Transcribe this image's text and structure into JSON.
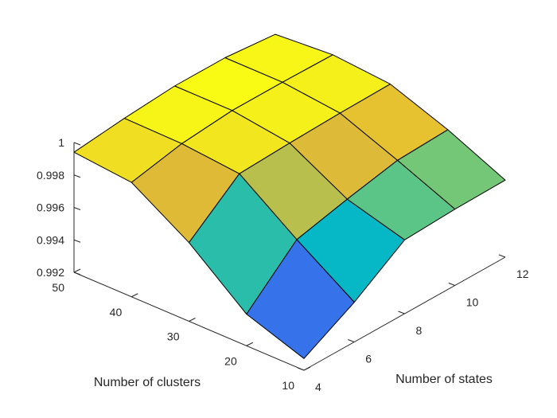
{
  "chart_data": {
    "type": "surface",
    "title": "",
    "xlabel": "Number of states",
    "ylabel": "Number of clusters",
    "zlabel": "",
    "x": [
      4,
      6,
      8,
      10,
      12
    ],
    "y": [
      10,
      20,
      30,
      40,
      50
    ],
    "z": [
      [
        0.99272,
        0.99445,
        0.99655,
        0.9967,
        0.99675
      ],
      [
        0.99395,
        0.9968,
        0.99755,
        0.9982,
        0.99835
      ],
      [
        0.99685,
        0.99935,
        0.9995,
        0.9996,
        0.99965
      ],
      [
        0.99905,
        0.9997,
        1.0,
        1.0,
        0.99995
      ],
      [
        0.9994,
        0.99975,
        1.0,
        1.0,
        0.9997
      ]
    ],
    "xlim": [
      4,
      12
    ],
    "ylim": [
      10,
      50
    ],
    "zlim": [
      0.992,
      1.0
    ],
    "xticks": [
      "4",
      "6",
      "8",
      "10",
      "12"
    ],
    "yticks": [
      "10",
      "20",
      "30",
      "40",
      "50"
    ],
    "zticks": [
      "0.992",
      "0.994",
      "0.996",
      "0.998",
      "1"
    ],
    "colormap": [
      "#3e26a8",
      "#4a54ee",
      "#1e96e4",
      "#06b9c4",
      "#7ac871",
      "#e3b934",
      "#f9fb14"
    ],
    "grid": "off"
  }
}
